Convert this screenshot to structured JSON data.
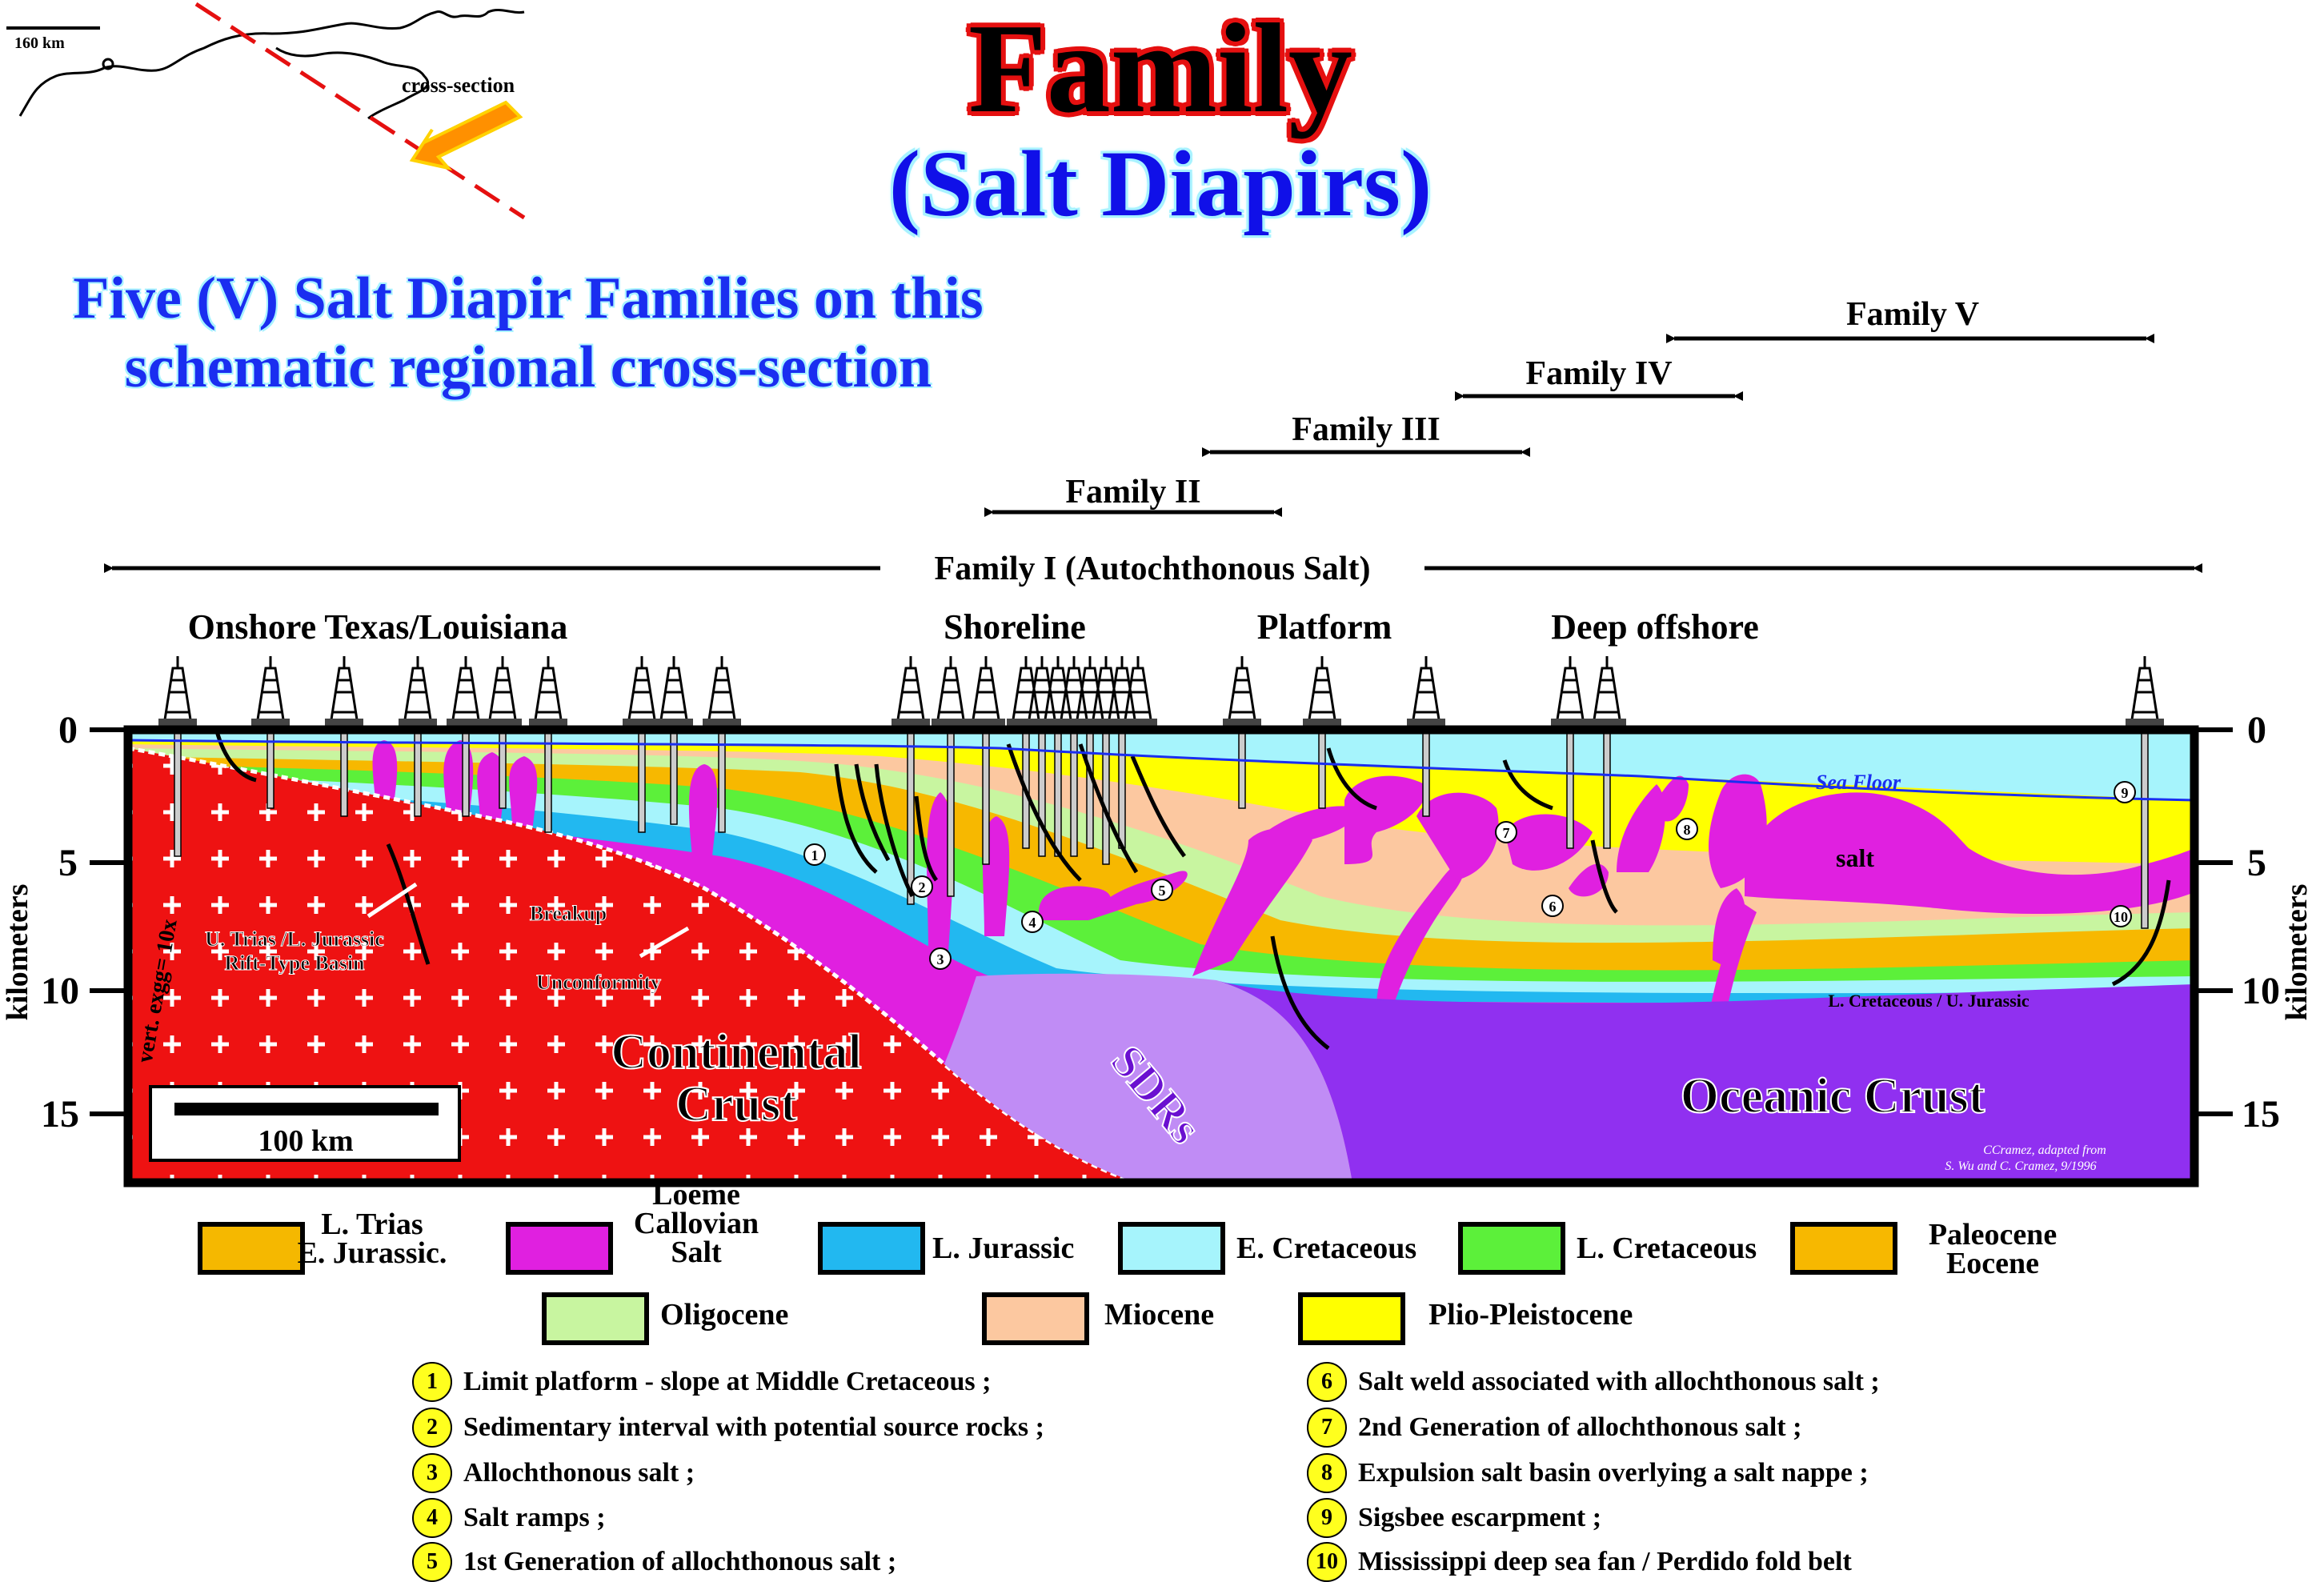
{
  "title": "Family",
  "subtitle": "(Salt Diapirs)",
  "headline": [
    "Five (V) Salt Diapir Families on this",
    "schematic regional  cross-section"
  ],
  "inset_map": {
    "scale": "160 km",
    "label": "cross-section"
  },
  "families": [
    {
      "label": "Family V"
    },
    {
      "label": "Family IV"
    },
    {
      "label": "Family III"
    },
    {
      "label": "Family II"
    },
    {
      "label": "Family I (Autochthonous Salt)"
    }
  ],
  "regions": [
    "Onshore Texas/Louisiana",
    "Shoreline",
    "Platform",
    "Deep offshore"
  ],
  "axis": {
    "label": "kilometers",
    "ticks": [
      "0",
      "5",
      "10",
      "15"
    ],
    "vert_exag": "vert. exgg= 10x",
    "scale_bar": "100 km"
  },
  "section_labels": {
    "continental_crust": [
      "Continental",
      "Crust"
    ],
    "sdrs": "SDRs",
    "oceanic_crust": "Oceanic Crust",
    "sea_floor": "Sea Floor",
    "salt": "salt",
    "l_cretaceous_u_jurassic": "L. Cretaceous / U. Jurassic",
    "rift_basin": [
      "U. Trias /L. Jurassic",
      "Rift-Type Basin"
    ],
    "breakup": [
      "Breakup",
      "Unconformity"
    ],
    "credit": [
      "CCramez, adapted from",
      "S. Wu  and C. Cramez, 9/1996"
    ],
    "markers": [
      "1",
      "2",
      "3",
      "4",
      "5",
      "6",
      "7",
      "8",
      "9",
      "10"
    ]
  },
  "legend": [
    {
      "label": [
        "L. Trias",
        "E. Jurassic."
      ],
      "color": "#f5b800"
    },
    {
      "label": [
        "Loeme",
        "Callovian",
        "Salt"
      ],
      "color": "#e020e0"
    },
    {
      "label": [
        "L. Jurassic"
      ],
      "color": "#22b8f0"
    },
    {
      "label": [
        "E. Cretaceous"
      ],
      "color": "#a6f4fc"
    },
    {
      "label": [
        "L. Cretaceous"
      ],
      "color": "#5cf03a"
    },
    {
      "label": [
        "Paleocene",
        "Eocene"
      ],
      "color": "#f7b800"
    },
    {
      "label": [
        "Oligocene"
      ],
      "color": "#c8f5a0"
    },
    {
      "label": [
        "Miocene"
      ],
      "color": "#fcc8a0"
    },
    {
      "label": [
        "Plio-Pleistocene"
      ],
      "color": "#ffff00"
    }
  ],
  "notes_left": [
    {
      "num": "1",
      "text": "Limit platform - slope at Middle Cretaceous ;"
    },
    {
      "num": "2",
      "text": "Sedimentary interval with potential source rocks ;"
    },
    {
      "num": "3",
      "text": "Allochthonous salt ;"
    },
    {
      "num": "4",
      "text": "Salt ramps ;"
    },
    {
      "num": "5",
      "text": "1st Generation of allochthonous salt ;"
    }
  ],
  "notes_right": [
    {
      "num": "6",
      "text": "Salt weld associated with allochthonous salt ;"
    },
    {
      "num": "7",
      "text": "2nd Generation of allochthonous salt  ;"
    },
    {
      "num": "8",
      "text": "Expulsion salt basin overlying a salt nappe ;"
    },
    {
      "num": "9",
      "text": "Sigsbee escarpment ;"
    },
    {
      "num": "10",
      "text": "Mississippi deep sea fan / Perdido fold belt"
    }
  ]
}
